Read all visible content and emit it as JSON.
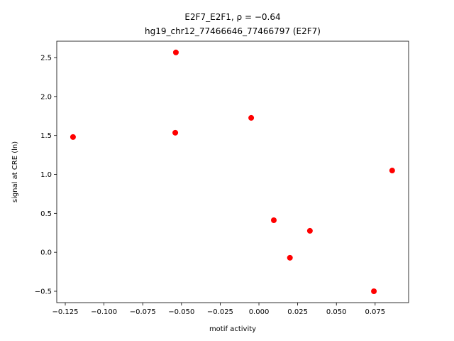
{
  "chart_data": {
    "type": "scatter",
    "title": "E2F7_E2F1, ρ = −0.64",
    "subtitle": "hg19_chr12_77466646_77466797 (E2F7)",
    "x_label": "motif activity",
    "y_label": "signal at CRE (ln)",
    "color": "#ff0000",
    "series": [
      {
        "x": [
          -0.12,
          -0.0536,
          -0.054,
          -0.005,
          0.0096,
          0.02,
          0.0329,
          0.0742,
          0.086
        ],
        "values": [
          1.48,
          2.566,
          1.535,
          1.726,
          0.412,
          -0.07,
          0.276,
          -0.5,
          1.05
        ]
      }
    ],
    "xlim": [
      -0.1305,
      0.0966
    ],
    "ylim": [
      -0.646,
      2.71
    ],
    "xticks": [
      {
        "value": -0.125,
        "label": "−0.125"
      },
      {
        "value": -0.1,
        "label": "−0.100"
      },
      {
        "value": -0.075,
        "label": "−0.075"
      },
      {
        "value": -0.05,
        "label": "−0.050"
      },
      {
        "value": -0.025,
        "label": "−0.025"
      },
      {
        "value": 0,
        "label": "0.000"
      },
      0.025,
      {
        "value": 0.05,
        "label": "0.050"
      },
      0.075
    ],
    "yticks": [
      {
        "value": -0.5,
        "label": "−0.5"
      },
      {
        "value": 0,
        "label": "0.0"
      },
      0.5,
      {
        "value": 1,
        "label": "1.0"
      },
      1.5,
      {
        "value": 2,
        "label": "2.0"
      },
      2.5
    ]
  }
}
